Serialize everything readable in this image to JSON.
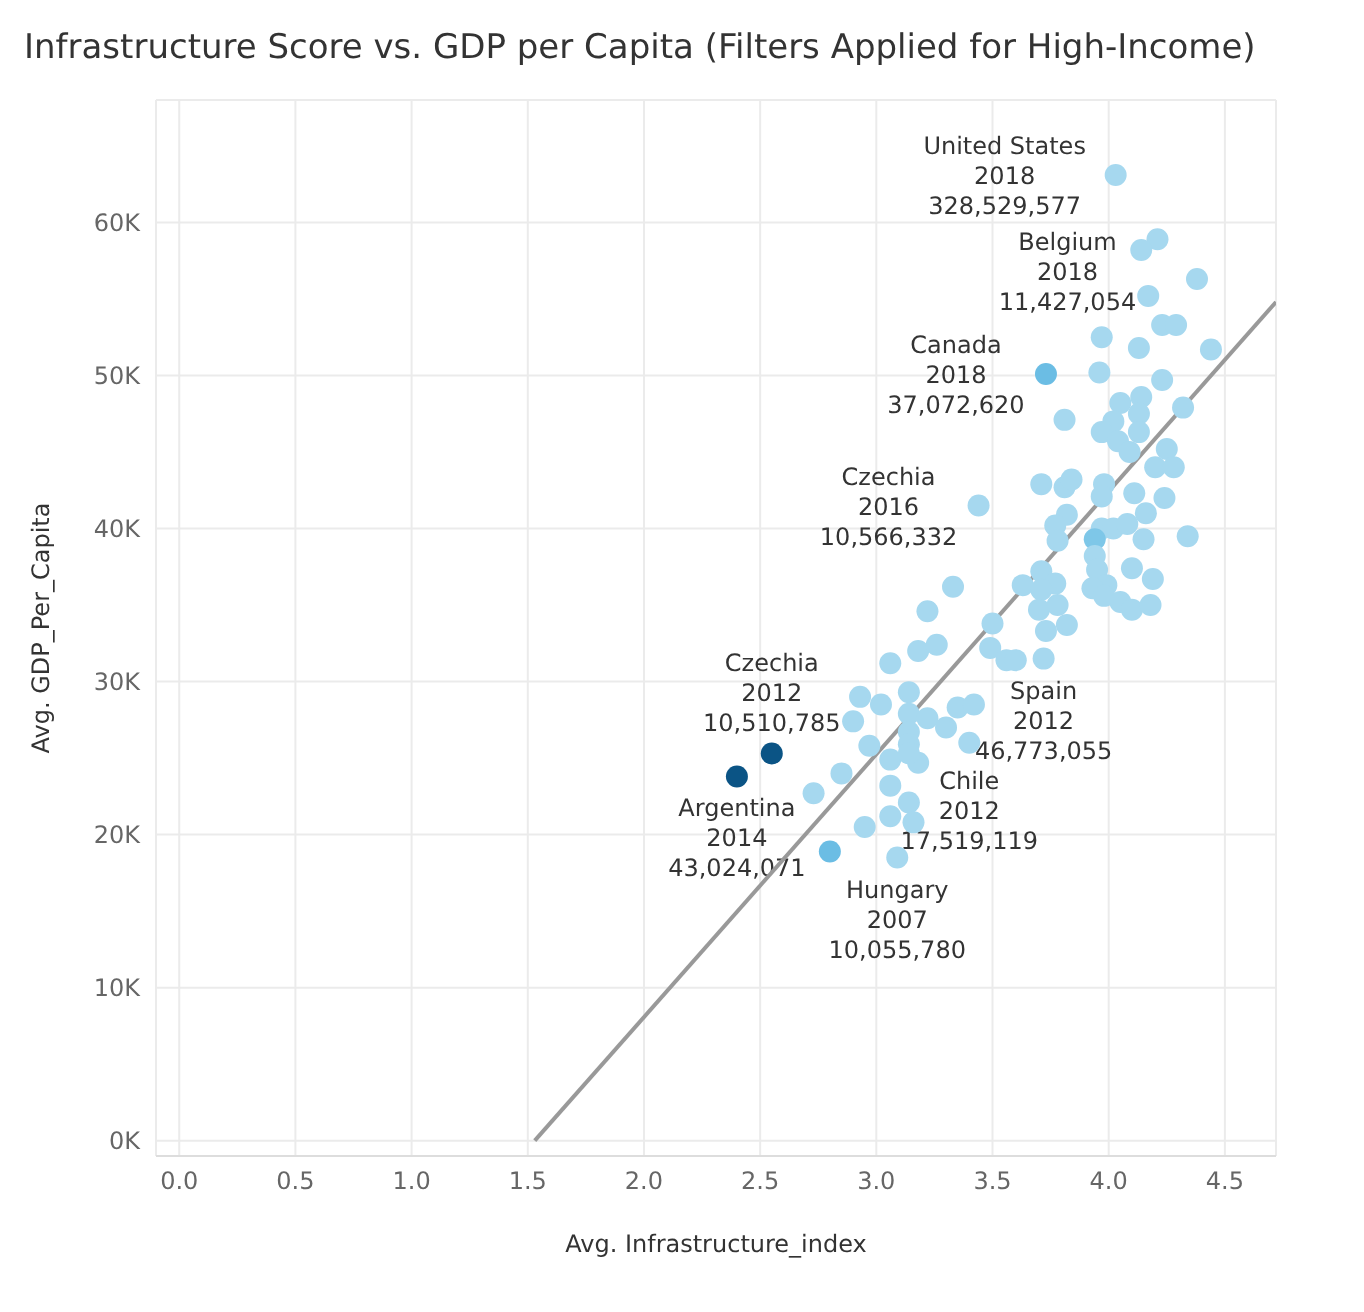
{
  "chart_data": {
    "type": "scatter",
    "title": "Infrastructure Score vs. GDP per Capita (Filters Applied for High-Income)",
    "xlabel": "Avg. Infrastructure_index",
    "ylabel": "Avg. GDP_Per_Capita",
    "xlim": [
      -0.1,
      4.72
    ],
    "ylim": [
      -1000,
      68000
    ],
    "xticks": [
      {
        "value": 0,
        "label": "0.0"
      },
      {
        "value": 0.5,
        "label": "0.5"
      },
      {
        "value": 1,
        "label": "1.0"
      },
      {
        "value": 1.5,
        "label": "1.5"
      },
      {
        "value": 2,
        "label": "2.0"
      },
      {
        "value": 2.5,
        "label": "2.5"
      },
      {
        "value": 3,
        "label": "3.0"
      },
      {
        "value": 3.5,
        "label": "3.5"
      },
      {
        "value": 4,
        "label": "4.0"
      },
      {
        "value": 4.5,
        "label": "4.5"
      }
    ],
    "yticks": [
      {
        "value": 0,
        "label": "0K"
      },
      {
        "value": 10000,
        "label": "10K"
      },
      {
        "value": 20000,
        "label": "20K"
      },
      {
        "value": 30000,
        "label": "30K"
      },
      {
        "value": 40000,
        "label": "40K"
      },
      {
        "value": 50000,
        "label": "50K"
      },
      {
        "value": 60000,
        "label": "60K"
      }
    ],
    "grid": true,
    "series": [
      {
        "marker": "circle",
        "x": [
          4.03,
          4.21,
          4.14,
          4.38,
          4.17,
          4.23,
          4.29,
          3.97,
          4.13,
          4.44,
          3.73,
          3.96,
          4.23,
          4.32,
          3.81,
          4.05,
          4.14,
          4.02,
          4.13,
          4.13,
          3.97,
          4.04,
          4.09,
          4.25,
          4.2,
          4.28,
          3.71,
          3.81,
          3.84,
          3.98,
          3.97,
          4.11,
          4.24,
          3.44,
          3.82,
          3.77,
          4.16,
          3.97,
          4.02,
          4.08,
          3.94,
          4.15,
          4.34,
          3.78,
          3.94,
          3.95,
          4.1,
          4.19,
          3.71,
          3.63,
          3.77,
          3.33,
          3.99,
          3.93,
          3.71,
          3.98,
          4.05,
          4.1,
          4.18,
          3.7,
          3.78,
          3.22,
          3.5,
          3.73,
          3.82,
          3.49,
          3.56,
          3.6,
          3.72,
          3.18,
          3.26,
          3.06,
          2.93,
          3.02,
          3.14,
          2.9,
          3.14,
          3.22,
          3.3,
          3.35,
          3.42,
          3.14,
          2.97,
          3.14,
          3.4,
          3.06,
          3.18,
          3.14,
          2.55,
          2.4,
          2.85,
          2.73,
          3.06,
          3.14,
          3.06,
          3.16,
          2.95,
          2.8,
          3.09
        ],
        "values": [
          63100,
          58900,
          58200,
          56300,
          55200,
          53300,
          53300,
          52500,
          51800,
          51700,
          50100,
          50200,
          49700,
          47900,
          47100,
          48200,
          48600,
          47000,
          47500,
          46300,
          46300,
          45700,
          45000,
          45200,
          44000,
          44000,
          42900,
          42700,
          43200,
          42900,
          42100,
          42300,
          42000,
          41500,
          40900,
          40200,
          41000,
          40000,
          40000,
          40300,
          39300,
          39300,
          39500,
          39200,
          38200,
          37300,
          37400,
          36700,
          37200,
          36300,
          36400,
          36200,
          36300,
          36100,
          36000,
          35600,
          35200,
          34700,
          35000,
          34700,
          35000,
          34600,
          33800,
          33300,
          33700,
          32200,
          31400,
          31400,
          31500,
          32000,
          32400,
          31200,
          29000,
          28500,
          29300,
          27400,
          27900,
          27600,
          27000,
          28300,
          28500,
          26700,
          25800,
          25900,
          26000,
          24900,
          24700,
          25300,
          25300,
          23800,
          24000,
          22700,
          23200,
          22100,
          21200,
          20800,
          20500,
          18900,
          18500
        ],
        "colors": [
          "#a6d8ef",
          "#a6d8ef",
          "#a6d8ef",
          "#a6d8ef",
          "#a6d8ef",
          "#a6d8ef",
          "#a6d8ef",
          "#a6d8ef",
          "#a6d8ef",
          "#a6d8ef",
          "#6bbde4",
          "#a6d8ef",
          "#a6d8ef",
          "#a6d8ef",
          "#a6d8ef",
          "#a6d8ef",
          "#a6d8ef",
          "#a6d8ef",
          "#a6d8ef",
          "#a6d8ef",
          "#a6d8ef",
          "#a6d8ef",
          "#a6d8ef",
          "#a6d8ef",
          "#a6d8ef",
          "#a6d8ef",
          "#a6d8ef",
          "#a6d8ef",
          "#a6d8ef",
          "#a6d8ef",
          "#a6d8ef",
          "#a6d8ef",
          "#a6d8ef",
          "#a6d8ef",
          "#a6d8ef",
          "#a6d8ef",
          "#a6d8ef",
          "#a6d8ef",
          "#a6d8ef",
          "#a6d8ef",
          "#7ec7e8",
          "#a6d8ef",
          "#a6d8ef",
          "#a6d8ef",
          "#a6d8ef",
          "#a6d8ef",
          "#a6d8ef",
          "#a6d8ef",
          "#a6d8ef",
          "#a6d8ef",
          "#a6d8ef",
          "#a6d8ef",
          "#a6d8ef",
          "#a6d8ef",
          "#a6d8ef",
          "#a6d8ef",
          "#a6d8ef",
          "#a6d8ef",
          "#a6d8ef",
          "#a6d8ef",
          "#a6d8ef",
          "#a6d8ef",
          "#a6d8ef",
          "#a6d8ef",
          "#a6d8ef",
          "#a6d8ef",
          "#a6d8ef",
          "#a6d8ef",
          "#a6d8ef",
          "#a6d8ef",
          "#a6d8ef",
          "#a6d8ef",
          "#a6d8ef",
          "#a6d8ef",
          "#a6d8ef",
          "#a6d8ef",
          "#a6d8ef",
          "#a6d8ef",
          "#a6d8ef",
          "#a6d8ef",
          "#a6d8ef",
          "#a6d8ef",
          "#a6d8ef",
          "#a6d8ef",
          "#a6d8ef",
          "#a6d8ef",
          "#a6d8ef",
          "#a6d8ef",
          "#0b5485",
          "#0b5485",
          "#a6d8ef",
          "#a6d8ef",
          "#a6d8ef",
          "#a6d8ef",
          "#a6d8ef",
          "#a6d8ef",
          "#a6d8ef",
          "#6bbde4",
          "#a6d8ef"
        ]
      },
      {
        "type": "line",
        "color": "#999999",
        "x": [
          1.53,
          4.72
        ],
        "values": [
          0,
          54800
        ]
      }
    ],
    "annotations": [
      {
        "text": "United States\n2018\n328,529,577",
        "x": 4.03,
        "y": 63100
      },
      {
        "text": "Belgium\n2018\n11,427,054",
        "x": 4.21,
        "y": 58900
      },
      {
        "text": "Canada\n2018\n37,072,620",
        "x": 3.73,
        "y": 50100
      },
      {
        "text": "Czechia\n2016\n10,566,332",
        "x": 3.44,
        "y": 41500
      },
      {
        "text": "Spain\n2012\n46,773,055",
        "x": 3.72,
        "y": 31500
      },
      {
        "text": "Chile\n2012\n17,519,119",
        "x": 3.4,
        "y": 26000
      },
      {
        "text": "Argentina\n2014\n43,024,071",
        "x": 2.4,
        "y": 23800
      },
      {
        "text": "Czechia\n2012\n10,510,785",
        "x": 2.55,
        "y": 25300
      },
      {
        "text": "Hungary\n2007\n10,055,780",
        "x": 3.09,
        "y": 18500
      }
    ]
  }
}
